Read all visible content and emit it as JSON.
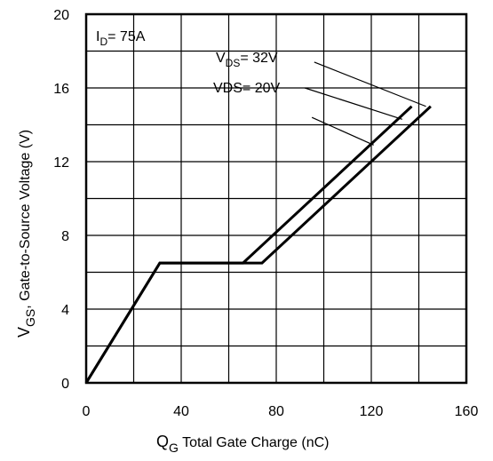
{
  "chart_data": {
    "type": "line",
    "title": "",
    "annotation": {
      "main": "I",
      "sub": "D",
      "rest": "= 75A"
    },
    "xlabel": {
      "main": "Q",
      "sub": "G",
      "rest": "  Total Gate Charge (nC)"
    },
    "ylabel": {
      "main": "V",
      "sub": "GS",
      "rest": ", Gate-to-Source Voltage (V)"
    },
    "xlim": [
      0,
      160
    ],
    "ylim": [
      0,
      20
    ],
    "xticks": [
      0,
      40,
      80,
      120,
      160
    ],
    "yticks": [
      0,
      4,
      8,
      12,
      16,
      20
    ],
    "xtick_labels": [
      "0",
      "40",
      "80",
      "120",
      "160"
    ],
    "ytick_labels": [
      "0",
      "4",
      "8",
      "12",
      "16",
      "20"
    ],
    "grid": true,
    "series_labels": [
      {
        "main": "V",
        "sub": "DS",
        "rest": "= 32V"
      },
      {
        "main": "VDS= 20V",
        "sub": "",
        "rest": ""
      }
    ],
    "series": [
      {
        "x": [
          0,
          31,
          74,
          145
        ],
        "y": [
          0,
          6.5,
          6.5,
          15
        ]
      },
      {
        "x": [
          0,
          31,
          66,
          137
        ],
        "y": [
          0,
          6.5,
          6.5,
          15
        ]
      }
    ],
    "leader_lines": [
      {
        "from": [
          96,
          17.4
        ],
        "to": [
          143,
          15.0
        ]
      },
      {
        "from": [
          92,
          16.0
        ],
        "to": [
          133,
          14.3
        ]
      },
      {
        "from": [
          95,
          14.4
        ],
        "to": [
          121,
          12.9
        ]
      }
    ]
  }
}
